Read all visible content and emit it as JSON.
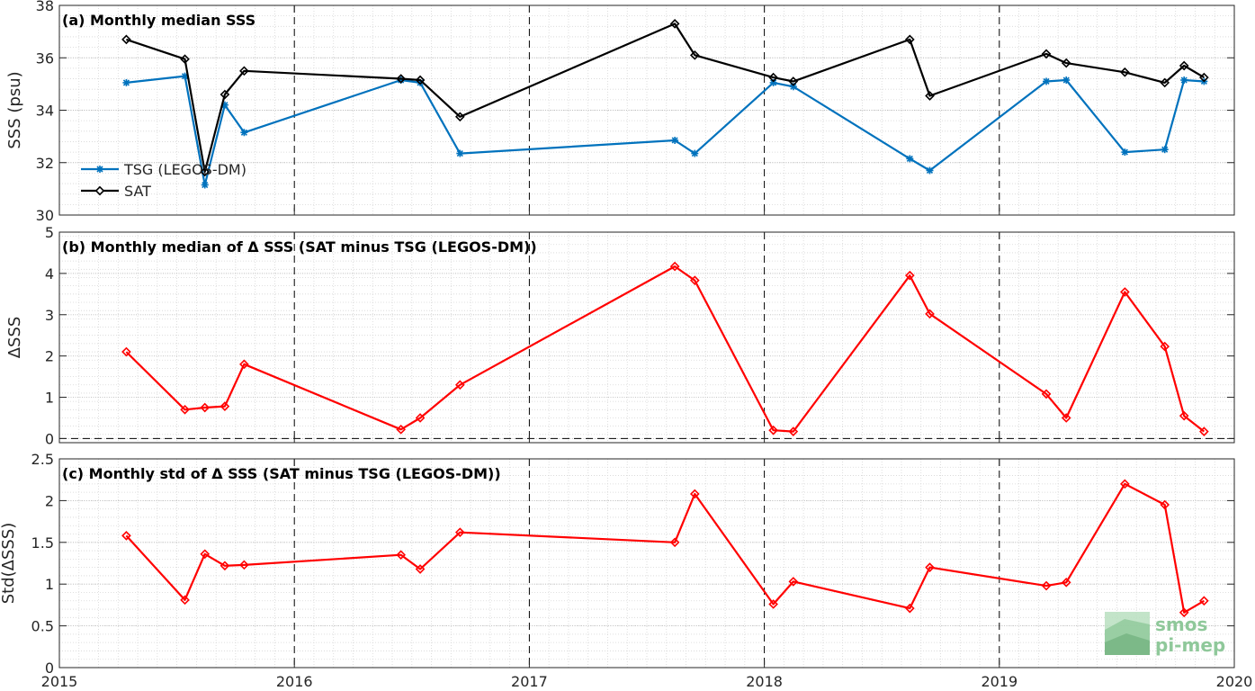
{
  "chart_data": [
    {
      "type": "line",
      "title": "(a) Monthly median SSS",
      "ylabel": "SSS (psu)",
      "xlabel": "",
      "xlim": [
        "2015-01-01",
        "2020-01-01"
      ],
      "ylim": [
        30,
        38
      ],
      "yticks": [
        30,
        32,
        34,
        36,
        38
      ],
      "xticks": [
        "2015",
        "2016",
        "2017",
        "2018",
        "2019",
        "2020"
      ],
      "grid": "dotted",
      "legend_position": "bottom-left",
      "series": [
        {
          "name": "TSG (LEGOS-DM)",
          "color": "#0072bd",
          "marker": "asterisk",
          "x": [
            "2015-04-15",
            "2015-07-15",
            "2015-08-15",
            "2015-09-15",
            "2015-10-15",
            "2016-06-15",
            "2016-07-15",
            "2016-09-15",
            "2017-08-15",
            "2017-09-15",
            "2018-01-15",
            "2018-02-15",
            "2018-08-15",
            "2018-09-15",
            "2019-03-15",
            "2019-04-15",
            "2019-07-15",
            "2019-09-15",
            "2019-10-15",
            "2019-11-15"
          ],
          "values": [
            35.05,
            35.3,
            31.15,
            34.2,
            33.15,
            35.15,
            35.05,
            32.35,
            32.85,
            32.35,
            35.05,
            34.9,
            32.15,
            31.7,
            35.1,
            35.15,
            32.4,
            32.5,
            35.15,
            35.1
          ]
        },
        {
          "name": "SAT",
          "color": "#000000",
          "marker": "diamond",
          "x": [
            "2015-04-15",
            "2015-07-15",
            "2015-08-15",
            "2015-09-15",
            "2015-10-15",
            "2016-06-15",
            "2016-07-15",
            "2016-09-15",
            "2017-08-15",
            "2017-09-15",
            "2018-01-15",
            "2018-02-15",
            "2018-08-15",
            "2018-09-15",
            "2019-03-15",
            "2019-04-15",
            "2019-07-15",
            "2019-09-15",
            "2019-10-15",
            "2019-11-15"
          ],
          "values": [
            36.7,
            35.95,
            31.65,
            34.6,
            35.5,
            35.2,
            35.15,
            33.75,
            37.3,
            36.1,
            35.25,
            35.1,
            36.7,
            34.55,
            36.15,
            35.8,
            35.45,
            35.05,
            35.7,
            35.25
          ]
        }
      ]
    },
    {
      "type": "line",
      "title": "(b) Monthly median of Δ SSS (SAT minus TSG (LEGOS-DM))",
      "ylabel": "ΔSSS",
      "xlabel": "",
      "xlim": [
        "2015-01-01",
        "2020-01-01"
      ],
      "ylim": [
        -0.1,
        5
      ],
      "yticks": [
        0,
        1,
        2,
        3,
        4,
        5
      ],
      "xticks": [
        "2015",
        "2016",
        "2017",
        "2018",
        "2019",
        "2020"
      ],
      "grid": "dotted",
      "zero_line": "dashed",
      "series": [
        {
          "color": "#ff0000",
          "marker": "diamond",
          "x": [
            "2015-04-15",
            "2015-07-15",
            "2015-08-15",
            "2015-09-15",
            "2015-10-15",
            "2016-06-15",
            "2016-07-15",
            "2016-09-15",
            "2017-08-15",
            "2017-09-15",
            "2018-01-15",
            "2018-02-15",
            "2018-08-15",
            "2018-09-15",
            "2019-03-15",
            "2019-04-15",
            "2019-07-15",
            "2019-09-15",
            "2019-10-15",
            "2019-11-15"
          ],
          "values": [
            2.1,
            0.7,
            0.75,
            0.78,
            1.8,
            0.22,
            0.5,
            1.3,
            4.17,
            3.83,
            0.2,
            0.17,
            3.95,
            3.02,
            1.08,
            0.5,
            3.55,
            2.23,
            0.55,
            0.17
          ]
        }
      ]
    },
    {
      "type": "line",
      "title": "(c) Monthly std of Δ SSS (SAT minus TSG (LEGOS-DM))",
      "ylabel": "Std(ΔSSS)",
      "xlabel": "",
      "xlim": [
        "2015-01-01",
        "2020-01-01"
      ],
      "ylim": [
        0,
        2.5
      ],
      "yticks": [
        0,
        0.5,
        1,
        1.5,
        2,
        2.5
      ],
      "xticks": [
        "2015",
        "2016",
        "2017",
        "2018",
        "2019",
        "2020"
      ],
      "grid": "dotted",
      "series": [
        {
          "color": "#ff0000",
          "marker": "diamond",
          "x": [
            "2015-04-15",
            "2015-07-15",
            "2015-08-15",
            "2015-09-15",
            "2015-10-15",
            "2016-06-15",
            "2016-07-15",
            "2016-09-15",
            "2017-08-15",
            "2017-09-15",
            "2018-01-15",
            "2018-02-15",
            "2018-08-15",
            "2018-09-15",
            "2019-03-15",
            "2019-04-15",
            "2019-07-15",
            "2019-09-15",
            "2019-10-15",
            "2019-11-15"
          ],
          "values": [
            1.58,
            0.81,
            1.36,
            1.22,
            1.23,
            1.35,
            1.18,
            1.62,
            1.5,
            2.08,
            0.76,
            1.03,
            0.71,
            1.2,
            0.98,
            1.02,
            2.2,
            1.95,
            0.66,
            0.8
          ]
        }
      ]
    }
  ],
  "logo": {
    "line1": "smos",
    "line2": "pi-mep"
  },
  "dashed_year_markers": [
    "2016",
    "2017",
    "2018",
    "2019"
  ]
}
